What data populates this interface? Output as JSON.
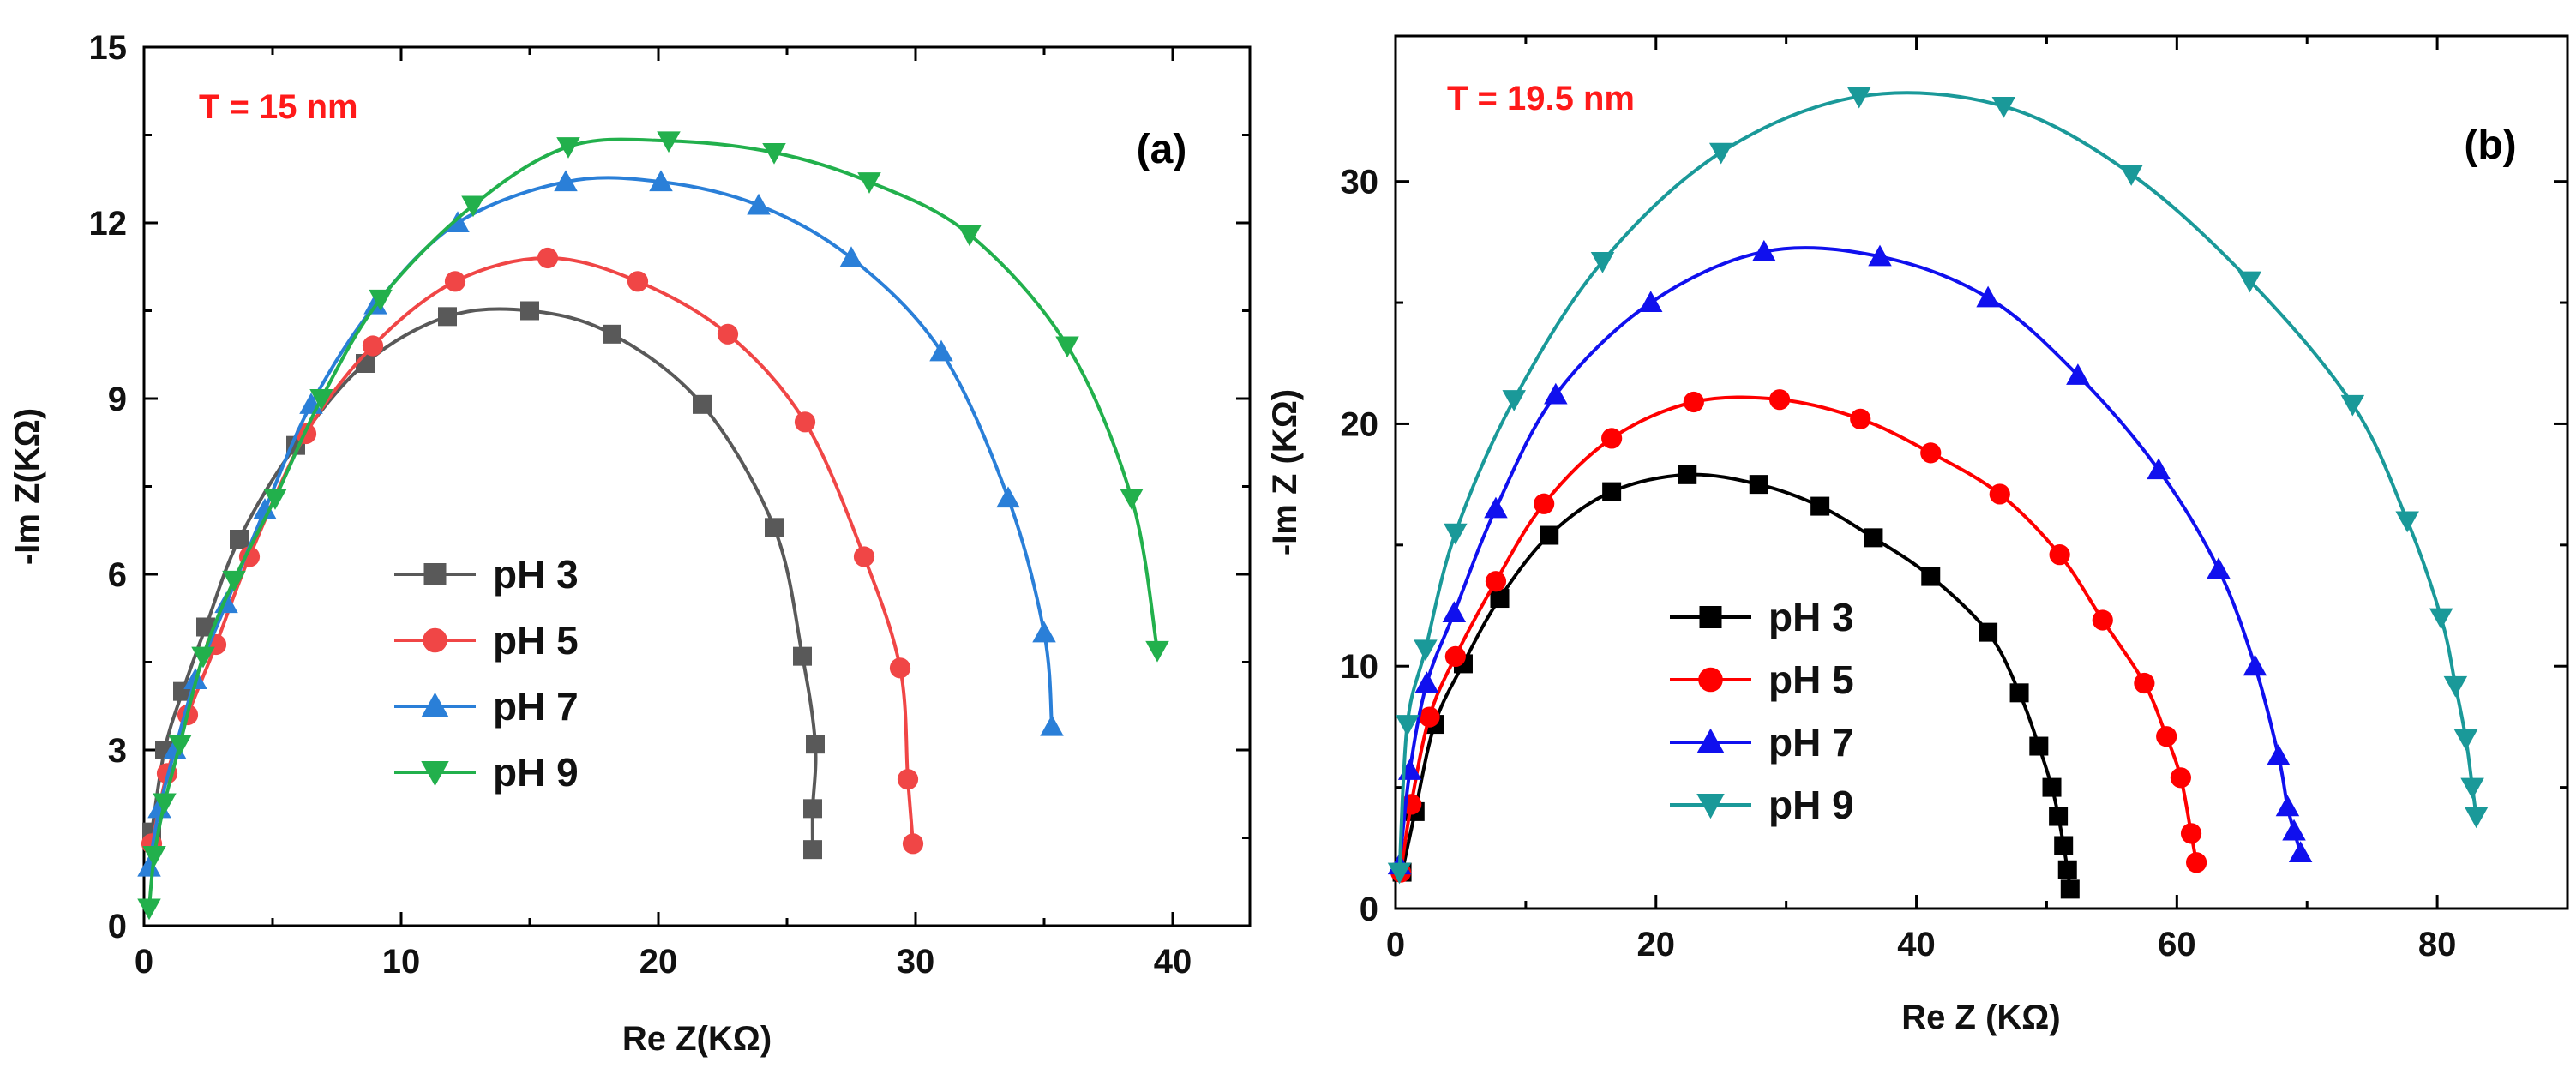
{
  "chart_data": [
    {
      "type": "scatter",
      "panel_label": "(a)",
      "annotation": "T = 15 nm",
      "annotation_color": "#ff1a1a",
      "xlabel": "Re Z(KΩ)",
      "ylabel": "-Im Z(KΩ)",
      "xlim": [
        0,
        43
      ],
      "ylim": [
        0,
        15
      ],
      "xticks": [
        0,
        10,
        20,
        30,
        40
      ],
      "yticks": [
        0,
        3,
        6,
        9,
        12,
        15
      ],
      "legend_position": "lower-left",
      "series": [
        {
          "name": "pH 3",
          "color": "#595959",
          "marker": "square",
          "x": [
            0.3,
            0.8,
            1.5,
            2.4,
            3.7,
            5.9,
            8.6,
            11.8,
            15.0,
            18.2,
            21.7,
            24.5,
            25.6,
            26.1,
            26.0,
            26.0
          ],
          "y": [
            1.6,
            3.0,
            4.0,
            5.1,
            6.6,
            8.2,
            9.6,
            10.4,
            10.5,
            10.1,
            8.9,
            6.8,
            4.6,
            3.1,
            2.0,
            1.3
          ]
        },
        {
          "name": "pH 5",
          "color": "#f04646",
          "marker": "circle",
          "x": [
            0.3,
            0.9,
            1.7,
            2.8,
            4.1,
            6.3,
            8.9,
            12.1,
            15.7,
            19.2,
            22.7,
            25.7,
            28.0,
            29.4,
            29.7,
            29.9
          ],
          "y": [
            1.4,
            2.6,
            3.6,
            4.8,
            6.3,
            8.4,
            9.9,
            11.0,
            11.4,
            11.0,
            10.1,
            8.6,
            6.3,
            4.4,
            2.5,
            1.4
          ]
        },
        {
          "name": "pH 7",
          "color": "#2a7fd8",
          "marker": "triangle-up",
          "x": [
            0.2,
            0.6,
            1.2,
            2.0,
            3.2,
            4.7,
            6.5,
            9.0,
            12.2,
            16.4,
            20.1,
            23.9,
            27.5,
            31.0,
            33.6,
            35.0,
            35.3
          ],
          "y": [
            1.0,
            2.0,
            3.0,
            4.2,
            5.5,
            7.1,
            8.9,
            10.6,
            12.0,
            12.7,
            12.7,
            12.3,
            11.4,
            9.8,
            7.3,
            5.0,
            3.4
          ]
        },
        {
          "name": "pH 9",
          "color": "#22b04c",
          "marker": "triangle-down",
          "x": [
            0.2,
            0.4,
            0.8,
            1.4,
            2.3,
            3.5,
            5.1,
            6.9,
            9.2,
            12.8,
            16.5,
            20.4,
            24.5,
            28.2,
            32.1,
            35.9,
            38.4,
            39.4
          ],
          "y": [
            0.3,
            1.2,
            2.1,
            3.1,
            4.6,
            5.9,
            7.3,
            9.0,
            10.7,
            12.3,
            13.3,
            13.4,
            13.2,
            12.7,
            11.8,
            9.9,
            7.3,
            4.7
          ]
        }
      ]
    },
    {
      "type": "scatter",
      "panel_label": "(b)",
      "annotation": "T = 19.5 nm",
      "annotation_color": "#ff1a1a",
      "xlabel": "Re Z (KΩ)",
      "ylabel": "-Im Z (KΩ)",
      "xlim": [
        0,
        90
      ],
      "ylim": [
        0,
        36
      ],
      "xticks": [
        0,
        20,
        40,
        60,
        80
      ],
      "yticks": [
        0,
        10,
        20,
        30
      ],
      "legend_position": "lower-left",
      "series": [
        {
          "name": "pH 3",
          "color": "#000000",
          "marker": "square",
          "x": [
            0.5,
            1.5,
            3.0,
            5.2,
            8.0,
            11.8,
            16.6,
            22.4,
            27.9,
            32.6,
            36.7,
            41.1,
            45.5,
            47.9,
            49.4,
            50.4,
            50.9,
            51.3,
            51.6,
            51.8
          ],
          "y": [
            1.5,
            4.0,
            7.6,
            10.1,
            12.8,
            15.4,
            17.2,
            17.9,
            17.5,
            16.6,
            15.3,
            13.7,
            11.4,
            8.9,
            6.7,
            5.0,
            3.8,
            2.6,
            1.6,
            0.8
          ]
        },
        {
          "name": "pH 5",
          "color": "#ff0000",
          "marker": "circle",
          "x": [
            0.4,
            1.2,
            2.6,
            4.6,
            7.7,
            11.4,
            16.6,
            22.9,
            29.5,
            35.7,
            41.1,
            46.4,
            51.0,
            54.3,
            57.5,
            59.2,
            60.3,
            61.1,
            61.5
          ],
          "y": [
            1.5,
            4.3,
            7.9,
            10.4,
            13.5,
            16.7,
            19.4,
            20.9,
            21.0,
            20.2,
            18.8,
            17.1,
            14.6,
            11.9,
            9.3,
            7.1,
            5.4,
            3.1,
            1.9
          ]
        },
        {
          "name": "pH 7",
          "color": "#1010ee",
          "marker": "triangle-up",
          "x": [
            0.3,
            1.1,
            2.4,
            4.5,
            7.7,
            12.3,
            19.6,
            28.3,
            37.2,
            45.5,
            52.4,
            58.6,
            63.2,
            66.0,
            67.8,
            68.5,
            69.0,
            69.5
          ],
          "y": [
            1.8,
            5.7,
            9.3,
            12.2,
            16.5,
            21.2,
            25.0,
            27.1,
            26.9,
            25.2,
            22.0,
            18.1,
            14.0,
            10.0,
            6.3,
            4.2,
            3.2,
            2.3
          ]
        },
        {
          "name": "pH 9",
          "color": "#1a9999",
          "marker": "triangle-down",
          "x": [
            0.3,
            0.9,
            2.3,
            4.6,
            9.1,
            15.9,
            25.0,
            35.6,
            46.7,
            56.5,
            65.6,
            73.5,
            77.7,
            80.3,
            81.4,
            82.2,
            82.7,
            83.0
          ],
          "y": [
            1.5,
            7.6,
            10.7,
            15.5,
            21.0,
            26.7,
            31.2,
            33.5,
            33.1,
            30.3,
            25.9,
            20.8,
            16.0,
            12.0,
            9.2,
            7.0,
            5.0,
            3.8
          ]
        }
      ]
    }
  ]
}
